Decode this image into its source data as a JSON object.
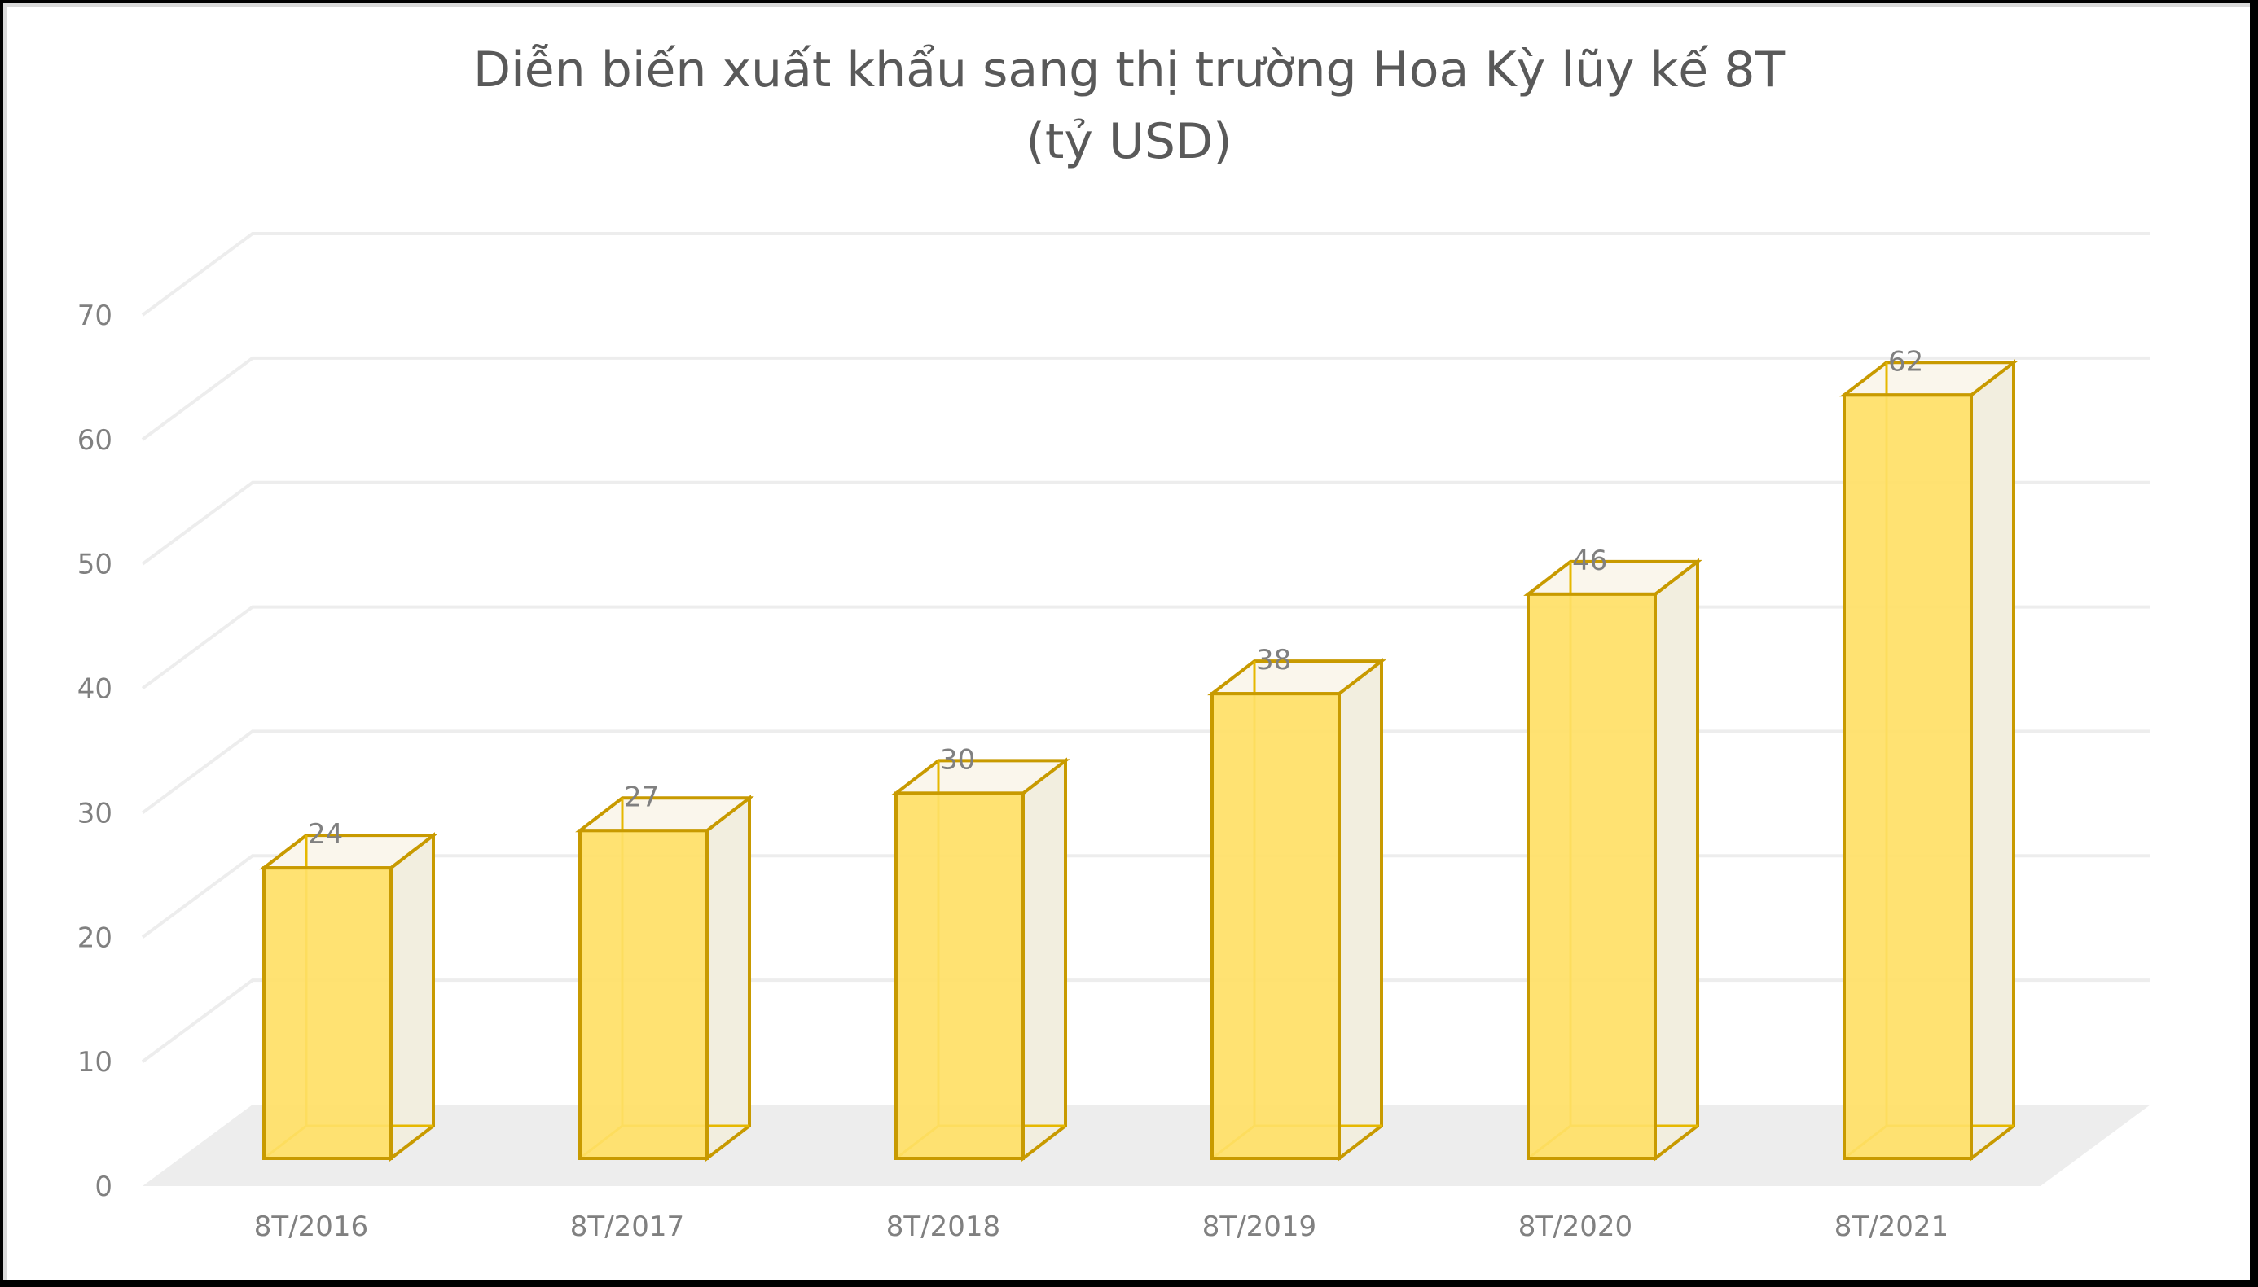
{
  "chart_data": {
    "type": "bar",
    "style": "3d-column",
    "title": "Diễn biến xuất khẩu sang thị trường Hoa Kỳ lũy kế 8T",
    "subtitle": "(tỷ USD)",
    "categories": [
      "8T/2016",
      "8T/2017",
      "8T/2018",
      "8T/2019",
      "8T/2020",
      "8T/2021"
    ],
    "values": [
      24,
      27,
      30,
      38,
      46,
      62
    ],
    "data_labels": [
      "24",
      "27",
      "30",
      "38",
      "46",
      "62"
    ],
    "xlabel": "",
    "ylabel": "",
    "ylim": [
      0,
      70
    ],
    "yticks": [
      "0",
      "10",
      "20",
      "30",
      "40",
      "50",
      "60",
      "70"
    ],
    "grid": true,
    "legend": "none",
    "colors": {
      "bar_fill": "#FFE066",
      "bar_edge": "#C89A00",
      "bar_inner_edge": "#E6B800",
      "bar_top": "#FAF6EC",
      "bar_side": "#F2EEDF",
      "gridline": "#EDEDED",
      "floor": "#EDEDED",
      "text": "#808080",
      "title": "#595959"
    }
  }
}
